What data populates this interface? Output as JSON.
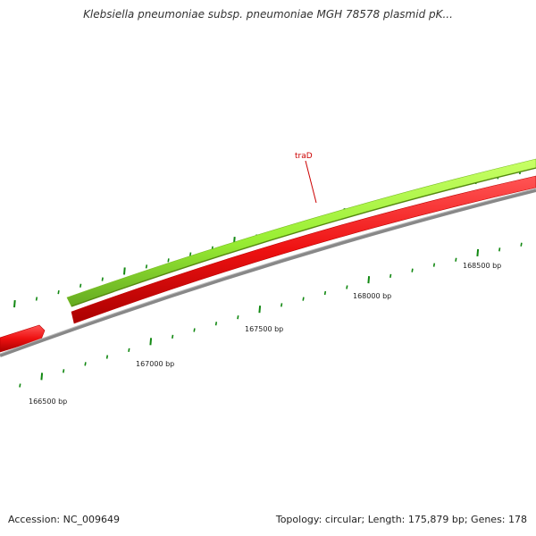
{
  "title": "Klebsiella pneumoniae subsp. pneumoniae MGH 78578 plasmid pK...",
  "footer": {
    "accession": "Accession: NC_009649",
    "summary": "Topology: circular; Length: 175,879 bp; Genes: 178"
  },
  "genes": [
    {
      "name": "traD",
      "color": "#cc0000"
    }
  ],
  "scale": {
    "labels": [
      "166500 bp",
      "167000 bp",
      "167500 bp",
      "168000 bp",
      "168500 bp"
    ]
  },
  "colors": {
    "forward_feature": "#99ee33",
    "forward_feature_dark": "#66aa22",
    "reverse_feature": "#ee1111",
    "reverse_feature_dark": "#aa0000",
    "backbone": "#888888",
    "tick": "#118811",
    "gene_label": "#cc0000"
  }
}
